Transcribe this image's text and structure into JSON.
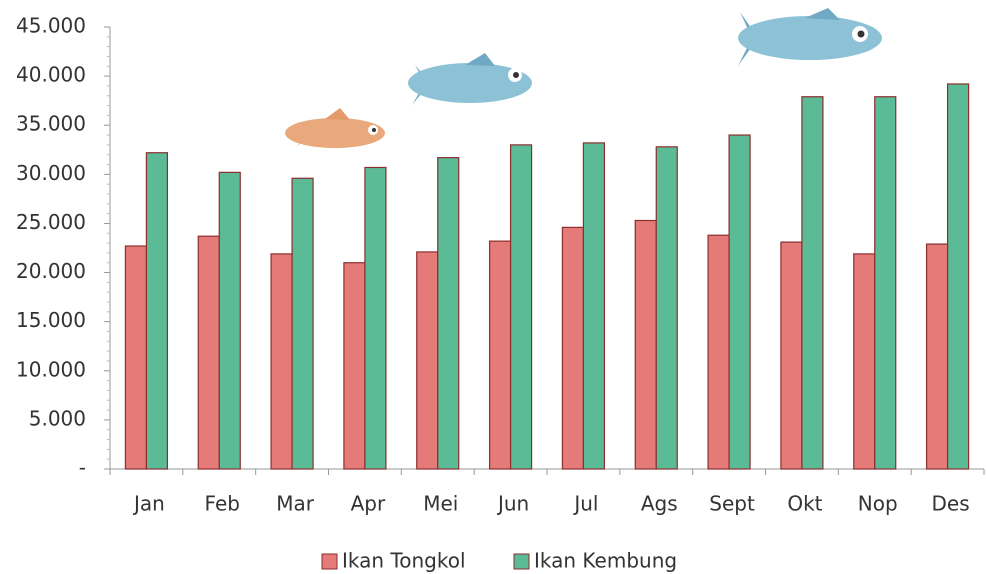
{
  "chart_data": {
    "type": "bar",
    "categories": [
      "Jan",
      "Feb",
      "Mar",
      "Apr",
      "Mei",
      "Jun",
      "Jul",
      "Ags",
      "Sept",
      "Okt",
      "Nop",
      "Des"
    ],
    "series": [
      {
        "name": "Ikan Tongkol",
        "color": "#e57b78",
        "values": [
          22700,
          23700,
          21900,
          21000,
          22100,
          23200,
          24600,
          25300,
          23800,
          23100,
          21900,
          22900
        ]
      },
      {
        "name": "Ikan Kembung",
        "color": "#5cbb97",
        "values": [
          32200,
          30200,
          29600,
          30700,
          31700,
          33000,
          33200,
          32800,
          34000,
          37900,
          37900,
          39200
        ]
      }
    ],
    "ylim": [
      0,
      45000
    ],
    "yticks": [
      {
        "value": 0,
        "label": "-"
      },
      {
        "value": 5000,
        "label": "5.000"
      },
      {
        "value": 10000,
        "label": "10.000"
      },
      {
        "value": 15000,
        "label": "15.000"
      },
      {
        "value": 20000,
        "label": "20.000"
      },
      {
        "value": 25000,
        "label": "25.000"
      },
      {
        "value": 30000,
        "label": "30.000"
      },
      {
        "value": 35000,
        "label": "35.000"
      },
      {
        "value": 40000,
        "label": "40.000"
      },
      {
        "value": 45000,
        "label": "45.000"
      }
    ],
    "legend": "bottom"
  }
}
